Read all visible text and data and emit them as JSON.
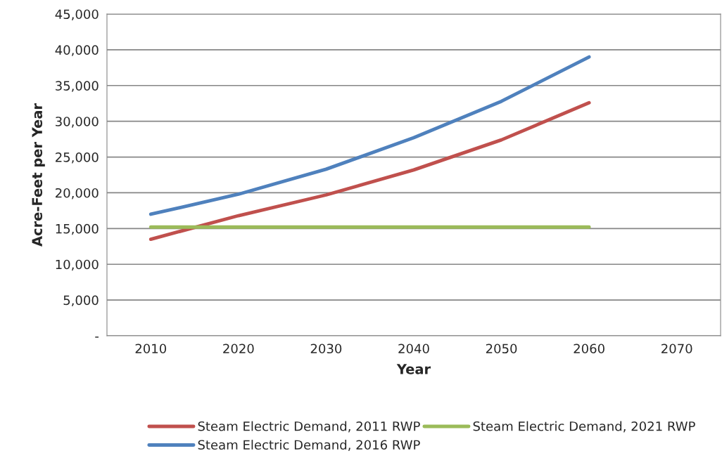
{
  "chart_data": {
    "type": "line",
    "xlabel": "Year",
    "ylabel": "Acre-Feet per Year",
    "categories": [
      "2010",
      "2020",
      "2030",
      "2040",
      "2050",
      "2060",
      "2070"
    ],
    "series": [
      {
        "name": "Steam Electric Demand, 2011 RWP",
        "color": "#c0504d",
        "values": [
          13500,
          16800,
          19700,
          23200,
          27400,
          32600,
          null
        ]
      },
      {
        "name": "Steam Electric Demand, 2016 RWP",
        "color": "#4f81bd",
        "values": [
          17000,
          19800,
          23300,
          27700,
          32800,
          39000,
          null
        ]
      },
      {
        "name": "Steam Electric Demand, 2021 RWP",
        "color": "#9bbb59",
        "values": [
          15200,
          15200,
          15200,
          15200,
          15200,
          15200,
          null
        ]
      }
    ],
    "ylim": [
      0,
      45000
    ],
    "yticks": [
      {
        "value": 0,
        "label": "-"
      },
      {
        "value": 5000,
        "label": "5,000"
      },
      {
        "value": 10000,
        "label": "10,000"
      },
      {
        "value": 15000,
        "label": "15,000"
      },
      {
        "value": 20000,
        "label": "20,000"
      },
      {
        "value": 25000,
        "label": "25,000"
      },
      {
        "value": 30000,
        "label": "30,000"
      },
      {
        "value": 35000,
        "label": "35,000"
      },
      {
        "value": 40000,
        "label": "40,000"
      },
      {
        "value": 45000,
        "label": "45,000"
      }
    ],
    "grid": "y",
    "legend": "bottom",
    "marker": "none",
    "line_style": "solid"
  }
}
